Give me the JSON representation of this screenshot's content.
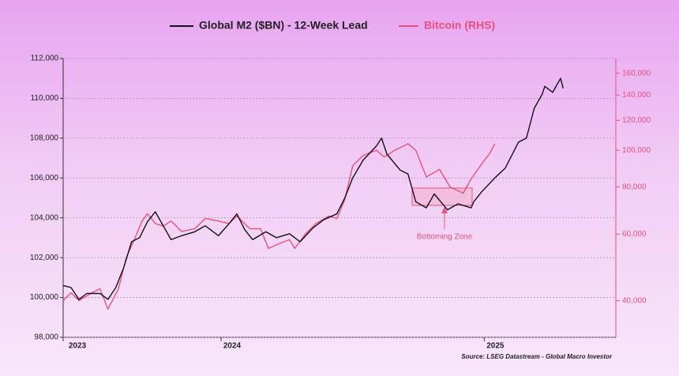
{
  "chart_data": {
    "type": "line",
    "x_ticks_note_free": null,
    "xlim": [
      2023.4,
      2025.5
    ],
    "xticks": [
      {
        "value": 2023.4,
        "label": "2023"
      },
      2024,
      2025
    ],
    "ylim": [
      98000,
      112000
    ],
    "yticks": [
      {
        "value": 98000,
        "label": "98,000"
      },
      {
        "value": 100000,
        "label": "100,000"
      },
      {
        "value": 102000,
        "label": "102,000"
      },
      {
        "value": 104000,
        "label": "104,000"
      },
      {
        "value": 106000,
        "label": "106,000"
      },
      {
        "value": 108000,
        "label": "108,000"
      },
      {
        "value": 110000,
        "label": "110,000"
      },
      {
        "value": 112000,
        "label": "112,000"
      }
    ],
    "y2lim": [
      32000,
      175000
    ],
    "y2log": true,
    "y2ticks": [
      {
        "value": 40000,
        "label": "40,000"
      },
      {
        "value": 60000,
        "label": "60,000"
      },
      {
        "value": 80000,
        "label": "80,000"
      },
      {
        "value": 100000,
        "label": "100,000"
      },
      {
        "value": 120000,
        "label": "120,000"
      },
      {
        "value": 140000,
        "label": "140,000"
      },
      {
        "value": 160000,
        "label": "160,000"
      }
    ],
    "grid": true,
    "series": [
      {
        "name": "Global M2 ($BN) - 12-Week Lead",
        "color": "#111111",
        "x": [
          2023.4,
          2023.43,
          2023.46,
          2023.49,
          2023.54,
          2023.57,
          2023.6,
          2023.63,
          2023.66,
          2023.69,
          2023.72,
          2023.75,
          2023.78,
          2023.81,
          2023.85,
          2023.9,
          2023.94,
          2023.99,
          2024.03,
          2024.06,
          2024.09,
          2024.12,
          2024.17,
          2024.21,
          2024.26,
          2024.3,
          2024.35,
          2024.39,
          2024.44,
          2024.47,
          2024.5,
          2024.54,
          2024.59,
          2024.61,
          2024.63,
          2024.68,
          2024.71,
          2024.74,
          2024.78,
          2024.81,
          2024.86,
          2024.9,
          2024.95,
          2024.96,
          2024.99,
          2025.04,
          2025.08,
          2025.13,
          2025.16,
          2025.19,
          2025.22,
          2025.23,
          2025.26,
          2025.29,
          2025.3
        ],
        "values": [
          100600,
          100500,
          99900,
          100200,
          100200,
          99900,
          100500,
          101500,
          102800,
          103000,
          103800,
          104300,
          103600,
          102900,
          103100,
          103300,
          103600,
          103100,
          103700,
          104200,
          103400,
          102900,
          103300,
          103000,
          103200,
          102800,
          103500,
          103900,
          104200,
          105000,
          106000,
          106900,
          107600,
          108000,
          107200,
          106400,
          106200,
          104800,
          104500,
          105200,
          104400,
          104700,
          104500,
          104800,
          105300,
          106000,
          106500,
          107800,
          108000,
          109500,
          110200,
          110600,
          110300,
          111000,
          110500
        ]
      },
      {
        "name": "Bitcoin (RHS)",
        "color": "#e8527a",
        "axis": "y2",
        "x": [
          2023.4,
          2023.43,
          2023.46,
          2023.51,
          2023.54,
          2023.57,
          2023.61,
          2023.64,
          2023.67,
          2023.7,
          2023.72,
          2023.75,
          2023.78,
          2023.81,
          2023.85,
          2023.9,
          2023.94,
          2023.99,
          2024.03,
          2024.06,
          2024.11,
          2024.15,
          2024.18,
          2024.23,
          2024.26,
          2024.28,
          2024.32,
          2024.36,
          2024.41,
          2024.44,
          2024.47,
          2024.5,
          2024.54,
          2024.59,
          2024.62,
          2024.66,
          2024.71,
          2024.74,
          2024.78,
          2024.83,
          2024.87,
          2024.92,
          2024.95,
          2024.99,
          2025.02,
          2025.04
        ],
        "values": [
          40000,
          42000,
          40000,
          42000,
          43000,
          38000,
          43000,
          52000,
          58000,
          65000,
          68000,
          64000,
          63000,
          65000,
          61000,
          62000,
          66000,
          65000,
          64000,
          67000,
          62000,
          62000,
          55000,
          57000,
          58000,
          55000,
          60000,
          64000,
          67000,
          66000,
          74000,
          91000,
          97000,
          100000,
          96000,
          100000,
          104000,
          100000,
          85000,
          89000,
          80000,
          77000,
          84000,
          92000,
          98000,
          104000
        ]
      }
    ],
    "annotation": "Bottoming Zone",
    "source": "Source: LSEG Datastream - Global Macro Investor"
  }
}
